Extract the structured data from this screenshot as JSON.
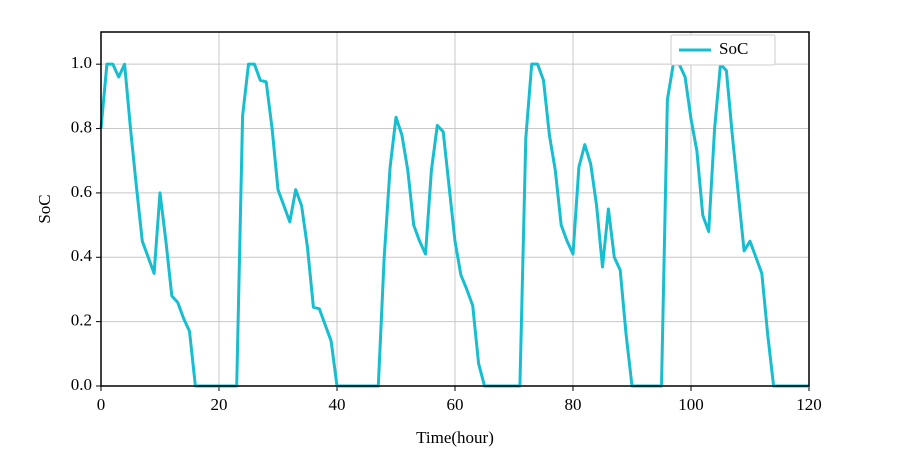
{
  "chart_data": {
    "type": "line",
    "xlabel": "Time(hour)",
    "ylabel": "SoC",
    "x": [
      0,
      1,
      2,
      3,
      4,
      5,
      6,
      7,
      8,
      9,
      10,
      11,
      12,
      13,
      14,
      15,
      16,
      17,
      18,
      19,
      20,
      21,
      22,
      23,
      24,
      25,
      26,
      27,
      28,
      29,
      30,
      31,
      32,
      33,
      34,
      35,
      36,
      37,
      38,
      39,
      40,
      41,
      42,
      43,
      44,
      45,
      46,
      47,
      48,
      49,
      50,
      51,
      52,
      53,
      54,
      55,
      56,
      57,
      58,
      59,
      60,
      61,
      62,
      63,
      64,
      65,
      66,
      67,
      68,
      69,
      70,
      71,
      72,
      73,
      74,
      75,
      76,
      77,
      78,
      79,
      80,
      81,
      82,
      83,
      84,
      85,
      86,
      87,
      88,
      89,
      90,
      91,
      92,
      93,
      94,
      95,
      96,
      97,
      98,
      99,
      100,
      101,
      102,
      103,
      104,
      105,
      106,
      107,
      108,
      109,
      110,
      111,
      112,
      113,
      114,
      115,
      116,
      117,
      118,
      119,
      120
    ],
    "series": [
      {
        "name": "SoC",
        "color": "#17becf",
        "values": [
          0.8,
          1.0,
          1.0,
          0.96,
          1.0,
          0.8,
          0.62,
          0.45,
          0.4,
          0.35,
          0.6,
          0.45,
          0.28,
          0.26,
          0.21,
          0.17,
          0,
          0,
          0,
          0,
          0,
          0,
          0,
          0,
          0.84,
          1.0,
          1.0,
          0.95,
          0.945,
          0.8,
          0.61,
          0.56,
          0.51,
          0.61,
          0.56,
          0.43,
          0.245,
          0.24,
          0.19,
          0.14,
          0,
          0,
          0,
          0,
          0,
          0,
          0,
          0,
          0.4,
          0.68,
          0.835,
          0.78,
          0.67,
          0.5,
          0.45,
          0.41,
          0.67,
          0.81,
          0.79,
          0.62,
          0.45,
          0.345,
          0.3,
          0.25,
          0.07,
          0,
          0,
          0,
          0,
          0,
          0,
          0,
          0.77,
          1.0,
          1.0,
          0.95,
          0.78,
          0.67,
          0.5,
          0.45,
          0.41,
          0.68,
          0.75,
          0.69,
          0.56,
          0.37,
          0.55,
          0.4,
          0.36,
          0.16,
          0,
          0,
          0,
          0,
          0,
          0,
          0.89,
          1.0,
          1.0,
          0.96,
          0.83,
          0.73,
          0.53,
          0.48,
          0.8,
          1.0,
          0.98,
          0.78,
          0.6,
          0.42,
          0.45,
          0.4,
          0.35,
          0.16,
          0,
          0,
          0,
          0,
          0,
          0,
          0
        ]
      }
    ],
    "xlim": [
      0,
      120
    ],
    "xticks": [
      0,
      20,
      40,
      60,
      80,
      100,
      120
    ],
    "ylim": [
      0,
      1.1
    ],
    "yticks": [
      {
        "value": 0,
        "label": "0.0"
      },
      0.2,
      0.4,
      0.6,
      0.8,
      {
        "value": 1,
        "label": "1.0"
      }
    ],
    "grid": true,
    "legend": "upper right"
  }
}
